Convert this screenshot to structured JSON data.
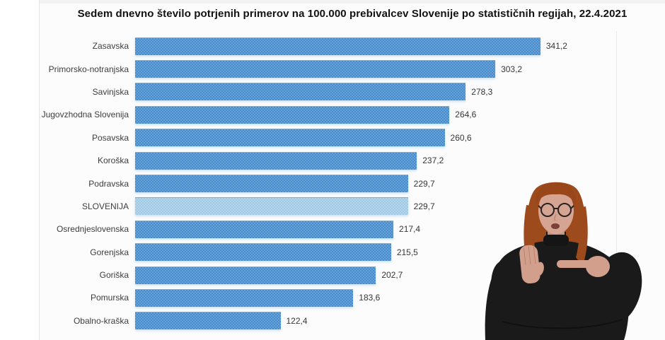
{
  "title": "Sedem dnevno število potrjenih primerov na 100.000 prebivalcev Slovenije po statističnih regijah, 22.4.2021",
  "chart_data": {
    "type": "bar",
    "orientation": "horizontal",
    "title": "Sedem dnevno število potrjenih primerov na 100.000 prebivalcev Slovenije po statističnih regijah, 22.4.2021",
    "categories": [
      "Zasavska",
      "Primorsko-notranjska",
      "Savinjska",
      "Jugovzhodna Slovenija",
      "Posavska",
      "Koroška",
      "Podravska",
      "SLOVENIJA",
      "Osrednjeslovenska",
      "Gorenjska",
      "Goriška",
      "Pomurska",
      "Obalno-kraška"
    ],
    "values": [
      341.2,
      303.2,
      278.3,
      264.6,
      260.6,
      237.2,
      229.7,
      229.7,
      217.4,
      215.5,
      202.7,
      183.6,
      122.4
    ],
    "value_labels": [
      "341,2",
      "303,2",
      "278,3",
      "264,6",
      "260,6",
      "237,2",
      "229,7",
      "229,7",
      "217,4",
      "215,5",
      "202,7",
      "183,6",
      "122,4"
    ],
    "highlight_index": 7,
    "highlight_category": "SLOVENIJA",
    "bar_color": "#4a90d2",
    "highlight_bar_color": "#a6cee9",
    "xlim": [
      0,
      405
    ],
    "grid": false,
    "legend": false,
    "value_label_position": "end-of-bar"
  },
  "overlay": {
    "description": "sign-language-interpreter",
    "hair_color": "#9d4a1c",
    "bangs_color": "#99461a",
    "skin_color": "#d6a493",
    "hand_color": "#d29f8d",
    "sweater_color": "#1a1a1a",
    "mouth_color": "#7c4036"
  }
}
